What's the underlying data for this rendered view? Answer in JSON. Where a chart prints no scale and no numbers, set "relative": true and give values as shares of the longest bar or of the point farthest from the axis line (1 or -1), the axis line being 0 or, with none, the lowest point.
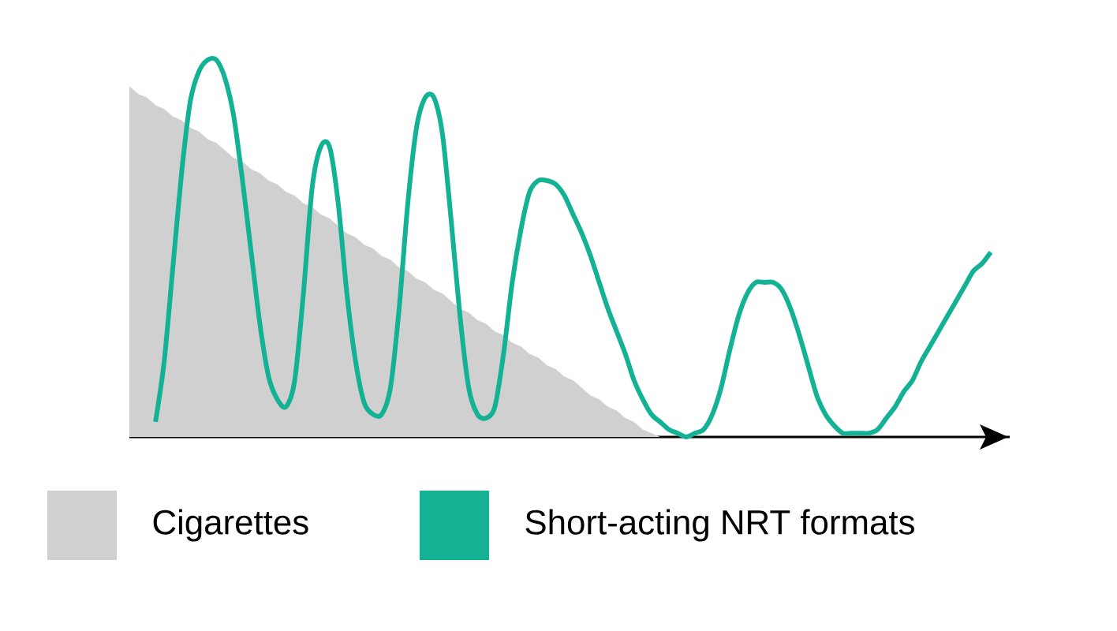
{
  "chart_data": {
    "type": "area",
    "relative": true,
    "legend": "bottom",
    "categories": [
      null,
      null,
      null,
      null,
      null,
      null,
      null,
      null,
      null,
      null,
      null,
      null,
      null,
      null,
      null,
      null,
      null,
      null,
      null,
      null,
      null,
      null,
      null,
      null,
      null,
      null,
      null,
      null,
      null,
      null,
      null,
      null,
      null,
      null,
      null,
      null,
      null,
      null,
      null,
      null,
      null,
      null,
      null,
      null,
      null,
      null,
      null,
      null,
      null,
      null,
      null,
      null,
      null,
      null,
      null,
      null,
      null,
      null,
      null,
      null,
      null,
      null,
      null,
      null,
      null,
      null,
      null,
      null,
      null,
      null,
      null,
      null,
      null,
      null,
      null,
      null,
      null,
      null,
      null,
      null,
      null,
      null,
      null,
      null,
      null,
      null,
      null,
      null,
      null,
      null,
      null,
      null,
      null,
      null,
      null,
      null,
      null,
      null,
      null,
      null
    ],
    "series": [
      {
        "name": "Cigarettes",
        "color": "#d0d0d0",
        "values": [
          0.93,
          0.91,
          0.9,
          0.88,
          0.87,
          0.85,
          0.84,
          0.82,
          0.81,
          0.79,
          0.78,
          0.76,
          0.74,
          0.73,
          0.71,
          0.7,
          0.68,
          0.67,
          0.65,
          0.64,
          0.62,
          0.61,
          0.59,
          0.58,
          0.56,
          0.54,
          0.53,
          0.51,
          0.5,
          0.48,
          0.47,
          0.45,
          0.44,
          0.42,
          0.41,
          0.39,
          0.38,
          0.36,
          0.34,
          0.33,
          0.31,
          0.3,
          0.28,
          0.27,
          0.25,
          0.24,
          0.22,
          0.21,
          0.19,
          0.18,
          0.16,
          0.15,
          0.13,
          0.11,
          0.1,
          0.08,
          0.07,
          0.05,
          0.04,
          0.02,
          0.01,
          0,
          null,
          null,
          null,
          null,
          null,
          null,
          null,
          null,
          null,
          null,
          null,
          null,
          null,
          null,
          null,
          null,
          null,
          null,
          null,
          null,
          null,
          null,
          null,
          null,
          null,
          null,
          null,
          null,
          null,
          null,
          null,
          null,
          null,
          null,
          null,
          null,
          null,
          null
        ]
      },
      {
        "name": "Short-acting NRT formats",
        "type": "line",
        "color": "#13b294",
        "values": [
          null,
          null,
          null,
          0.04,
          0.2,
          0.45,
          0.7,
          0.89,
          0.97,
          1.0,
          1.0,
          0.95,
          0.85,
          0.68,
          0.49,
          0.3,
          0.16,
          0.1,
          0.08,
          0.15,
          0.38,
          0.66,
          0.77,
          0.77,
          0.62,
          0.38,
          0.2,
          0.09,
          0.06,
          0.06,
          0.13,
          0.34,
          0.62,
          0.82,
          0.9,
          0.9,
          0.8,
          0.57,
          0.32,
          0.13,
          0.06,
          0.05,
          0.08,
          0.22,
          0.41,
          0.55,
          0.65,
          0.68,
          0.68,
          0.67,
          0.64,
          0.59,
          0.54,
          0.48,
          0.41,
          0.34,
          0.28,
          0.22,
          0.15,
          0.1,
          0.06,
          0.04,
          0.02,
          0.01,
          0.0,
          0.01,
          0.02,
          0.06,
          0.13,
          0.23,
          0.32,
          0.38,
          0.41,
          0.41,
          0.41,
          0.39,
          0.34,
          0.27,
          0.19,
          0.11,
          0.06,
          0.03,
          0.01,
          0.01,
          0.01,
          0.01,
          0.02,
          0.05,
          0.08,
          0.12,
          0.15,
          0.2,
          0.24,
          0.28,
          0.32,
          0.36,
          0.4,
          0.44,
          0.46,
          0.49
        ]
      }
    ]
  }
}
